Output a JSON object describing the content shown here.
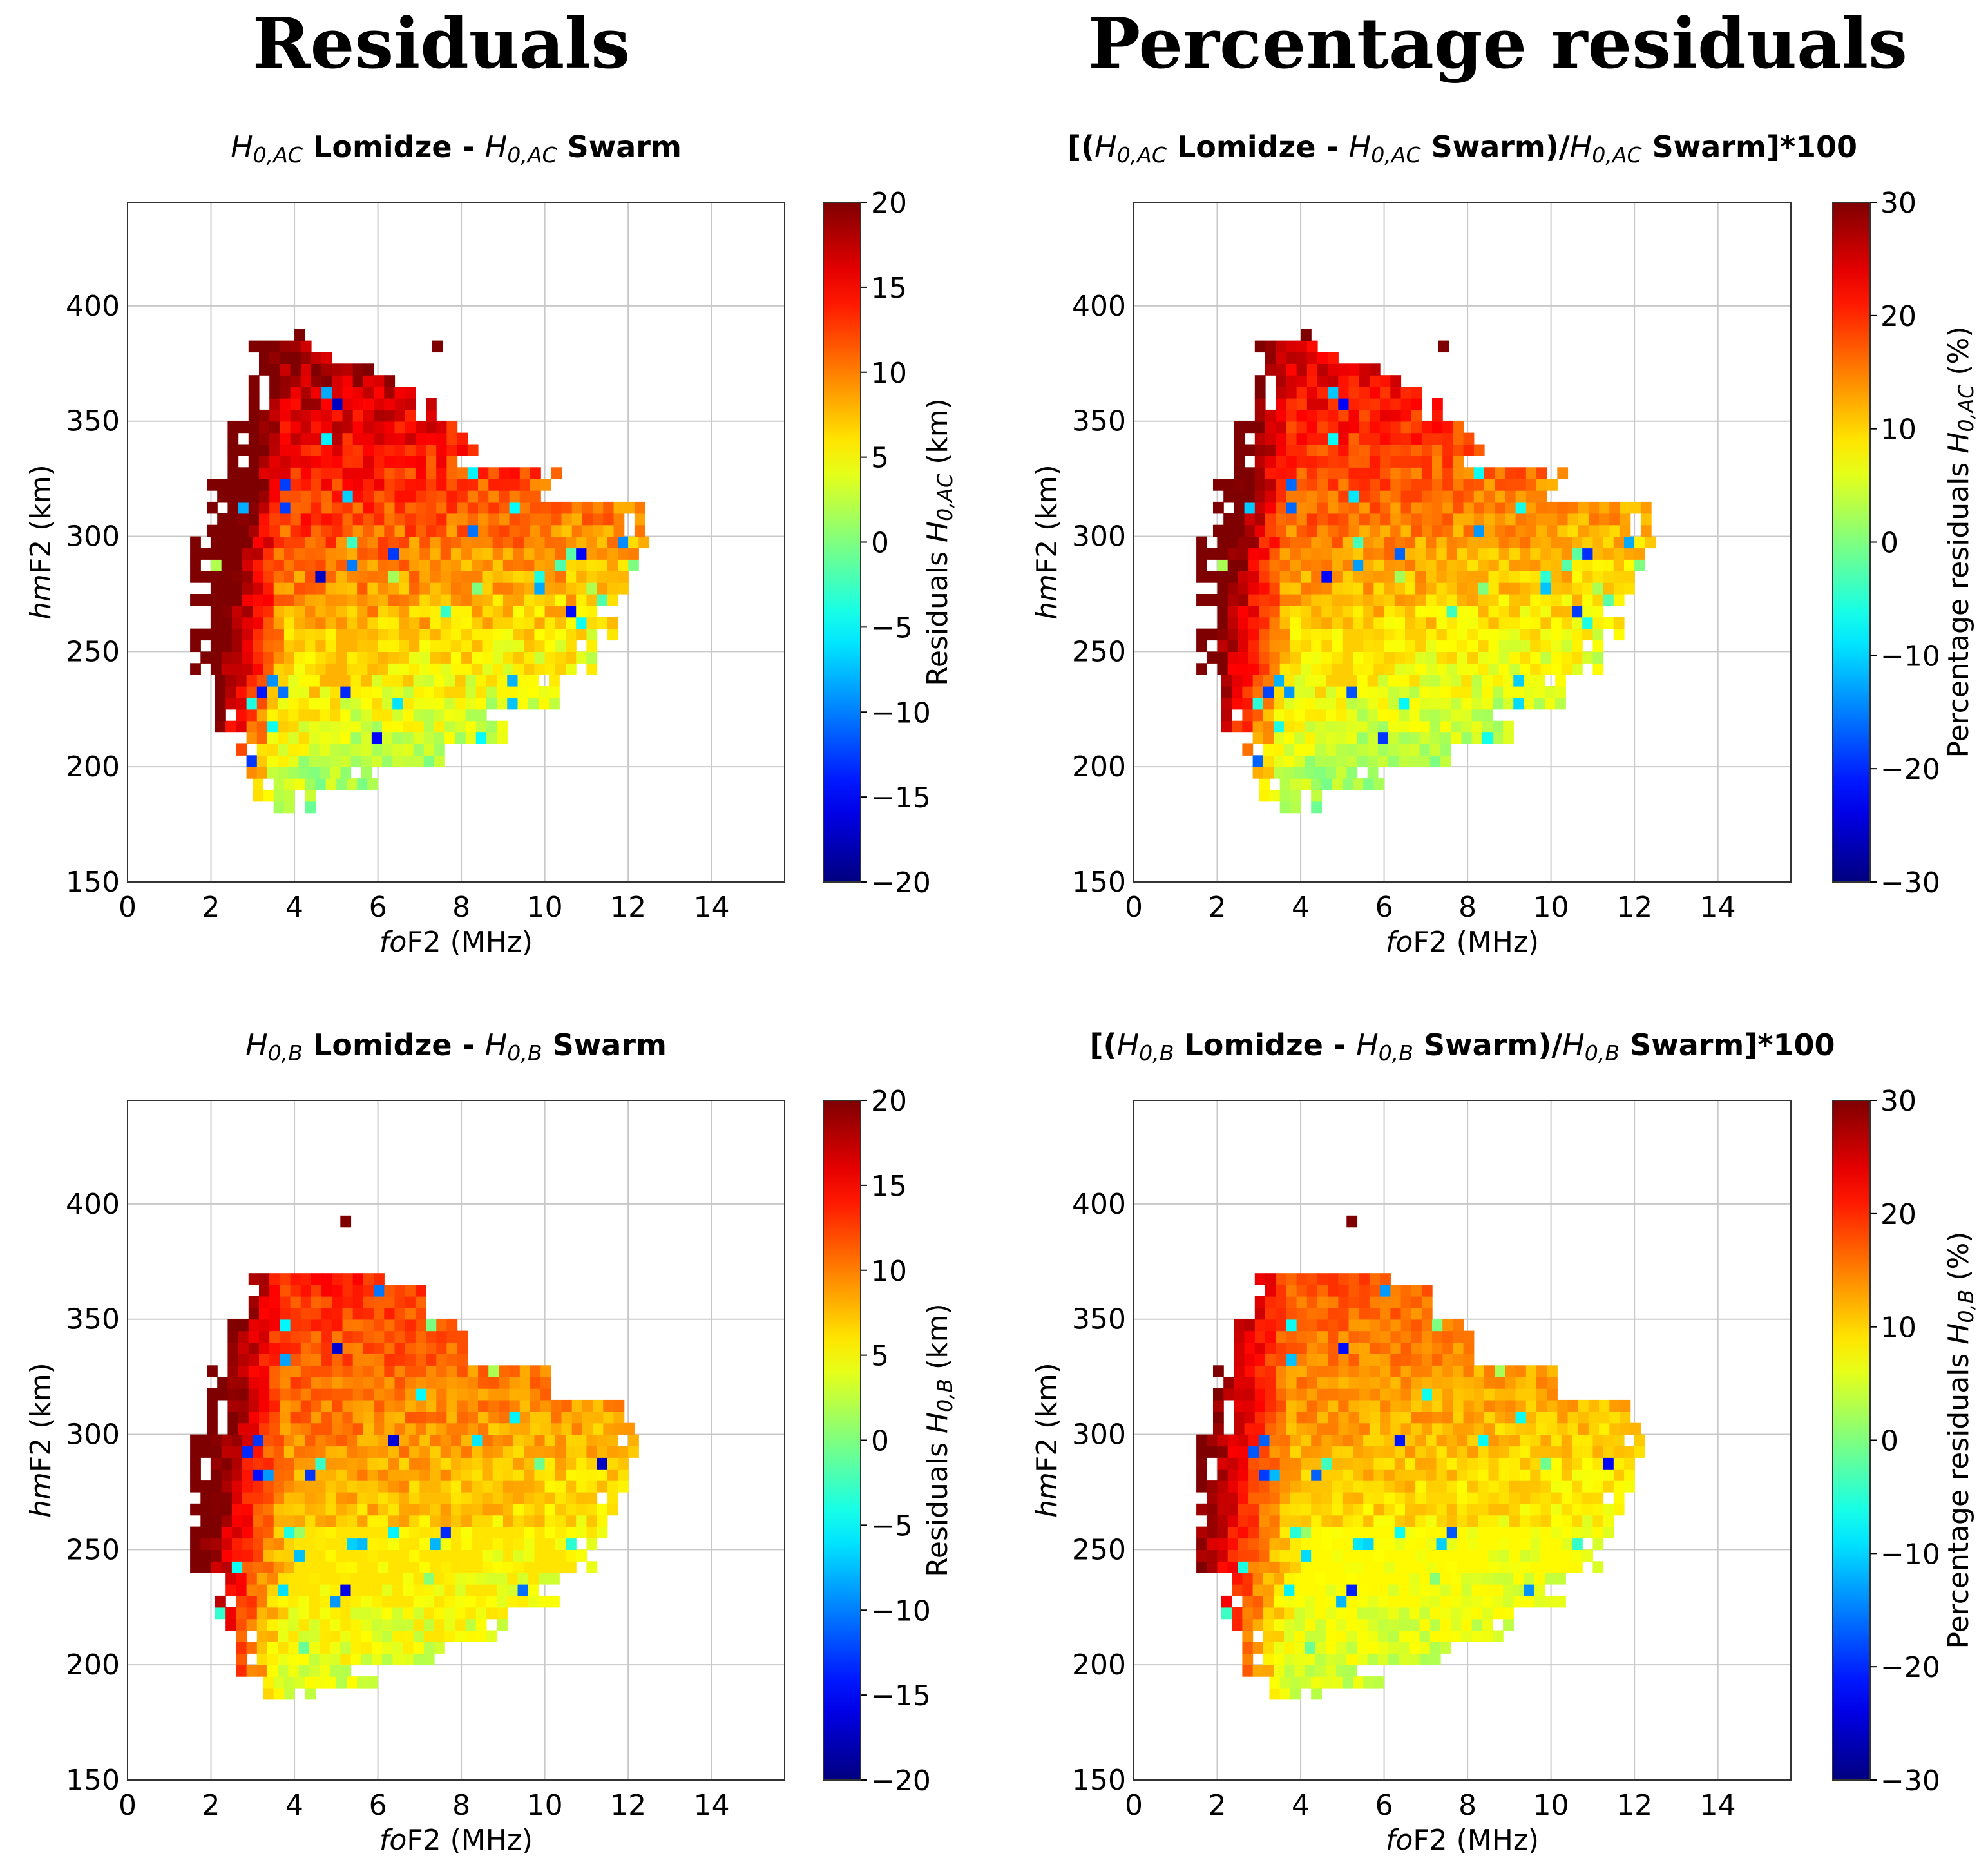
{
  "column_titles": [
    "Residuals",
    "Percentage residuals"
  ],
  "colormap": [
    "#00007f",
    "#0000ff",
    "#007fff",
    "#00ffff",
    "#7fff7f",
    "#ffff00",
    "#ff7f00",
    "#ff0000",
    "#7f0000"
  ],
  "chart_data": [
    {
      "type": "heatmap",
      "column": "Residuals",
      "title_parts": [
        [
          "H",
          true,
          false
        ],
        [
          "0,AC",
          true,
          true
        ],
        [
          " Lomidze - ",
          false,
          false
        ],
        [
          "H",
          true,
          false
        ],
        [
          "0,AC",
          true,
          true
        ],
        [
          " Swarm",
          false,
          false
        ]
      ],
      "xlabel_parts": [
        [
          "fo",
          true
        ],
        [
          "F2 (MHz)",
          false
        ]
      ],
      "ylabel_parts": [
        [
          "hm",
          true
        ],
        [
          "F2 (km)",
          false
        ]
      ],
      "xlim": [
        0,
        15.75
      ],
      "ylim": [
        150,
        445
      ],
      "xticks": [
        0,
        2,
        4,
        6,
        8,
        10,
        12,
        14
      ],
      "yticks": [
        150,
        200,
        250,
        300,
        350,
        400
      ],
      "colorbar": {
        "min": -20,
        "max": 20,
        "ticks": [
          20,
          15,
          10,
          5,
          0,
          -5,
          -10,
          -15,
          -20
        ],
        "label_parts": [
          [
            "Residuals ",
            false,
            false
          ],
          [
            "H",
            true,
            false
          ],
          [
            "0,AC",
            true,
            true
          ],
          [
            " (km)",
            false,
            false
          ]
        ]
      },
      "cell": [
        0.25,
        5
      ],
      "bins": {
        "foF2_step_MHz": 0.25,
        "hmF2_step_km": 5,
        "bin_count": 1900
      },
      "seed": 11
    },
    {
      "type": "heatmap",
      "column": "Percentage residuals",
      "title_parts": [
        [
          "[(",
          false,
          false
        ],
        [
          "H",
          true,
          false
        ],
        [
          "0,AC",
          true,
          true
        ],
        [
          " Lomidze - ",
          false,
          false
        ],
        [
          "H",
          true,
          false
        ],
        [
          "0,AC",
          true,
          true
        ],
        [
          " Swarm)/",
          false,
          false
        ],
        [
          "H",
          true,
          false
        ],
        [
          "0,AC",
          true,
          true
        ],
        [
          " Swarm]*100",
          false,
          false
        ]
      ],
      "xlabel_parts": [
        [
          "fo",
          true
        ],
        [
          "F2 (MHz)",
          false
        ]
      ],
      "ylabel_parts": [
        [
          "hm",
          true
        ],
        [
          "F2 (km)",
          false
        ]
      ],
      "xlim": [
        0,
        15.75
      ],
      "ylim": [
        150,
        445
      ],
      "xticks": [
        0,
        2,
        4,
        6,
        8,
        10,
        12,
        14
      ],
      "yticks": [
        150,
        200,
        250,
        300,
        350,
        400
      ],
      "colorbar": {
        "min": -30,
        "max": 30,
        "ticks": [
          30,
          20,
          10,
          0,
          -10,
          -20,
          -30
        ],
        "label_parts": [
          [
            "Percentage residuals ",
            false,
            false
          ],
          [
            "H",
            true,
            false
          ],
          [
            "0,AC",
            true,
            true
          ],
          [
            " (%)",
            false,
            false
          ]
        ]
      },
      "cell": [
        0.25,
        5
      ],
      "bins": {
        "foF2_step_MHz": 0.25,
        "hmF2_step_km": 5,
        "bin_count": 1900
      },
      "seed": 11
    },
    {
      "type": "heatmap",
      "column": "Residuals",
      "title_parts": [
        [
          "H",
          true,
          false
        ],
        [
          "0,B",
          true,
          true
        ],
        [
          " Lomidze - ",
          false,
          false
        ],
        [
          "H",
          true,
          false
        ],
        [
          "0,B",
          true,
          true
        ],
        [
          " Swarm",
          false,
          false
        ]
      ],
      "xlabel_parts": [
        [
          "fo",
          true
        ],
        [
          "F2 (MHz)",
          false
        ]
      ],
      "ylabel_parts": [
        [
          "hm",
          true
        ],
        [
          "F2 (km)",
          false
        ]
      ],
      "xlim": [
        0,
        15.75
      ],
      "ylim": [
        150,
        445
      ],
      "xticks": [
        0,
        2,
        4,
        6,
        8,
        10,
        12,
        14
      ],
      "yticks": [
        150,
        200,
        250,
        300,
        350,
        400
      ],
      "colorbar": {
        "min": -20,
        "max": 20,
        "ticks": [
          20,
          15,
          10,
          5,
          0,
          -5,
          -10,
          -15,
          -20
        ],
        "label_parts": [
          [
            "Residuals ",
            false,
            false
          ],
          [
            "H",
            true,
            false
          ],
          [
            "0,B",
            true,
            true
          ],
          [
            " (km)",
            false,
            false
          ]
        ]
      },
      "cell": [
        0.25,
        5
      ],
      "bins": {
        "foF2_step_MHz": 0.25,
        "hmF2_step_km": 5,
        "bin_count": 1850
      },
      "seed": 23
    },
    {
      "type": "heatmap",
      "column": "Percentage residuals",
      "title_parts": [
        [
          "[(",
          false,
          false
        ],
        [
          "H",
          true,
          false
        ],
        [
          "0,B",
          true,
          true
        ],
        [
          " Lomidze - ",
          false,
          false
        ],
        [
          "H",
          true,
          false
        ],
        [
          "0,B",
          true,
          true
        ],
        [
          " Swarm)/",
          false,
          false
        ],
        [
          "H",
          true,
          false
        ],
        [
          "0,B",
          true,
          true
        ],
        [
          " Swarm]*100",
          false,
          false
        ]
      ],
      "xlabel_parts": [
        [
          "fo",
          true
        ],
        [
          "F2 (MHz)",
          false
        ]
      ],
      "ylabel_parts": [
        [
          "hm",
          true
        ],
        [
          "F2 (km)",
          false
        ]
      ],
      "xlim": [
        0,
        15.75
      ],
      "ylim": [
        150,
        445
      ],
      "xticks": [
        0,
        2,
        4,
        6,
        8,
        10,
        12,
        14
      ],
      "yticks": [
        150,
        200,
        250,
        300,
        350,
        400
      ],
      "colorbar": {
        "min": -30,
        "max": 30,
        "ticks": [
          30,
          20,
          10,
          0,
          -10,
          -20,
          -30
        ],
        "label_parts": [
          [
            "Percentage residuals ",
            false,
            false
          ],
          [
            "H",
            true,
            false
          ],
          [
            "0,B",
            true,
            true
          ],
          [
            " (%)",
            false,
            false
          ]
        ]
      },
      "cell": [
        0.25,
        5
      ],
      "bins": {
        "foF2_step_MHz": 0.25,
        "hmF2_step_km": 5,
        "bin_count": 1850
      },
      "seed": 23
    }
  ]
}
